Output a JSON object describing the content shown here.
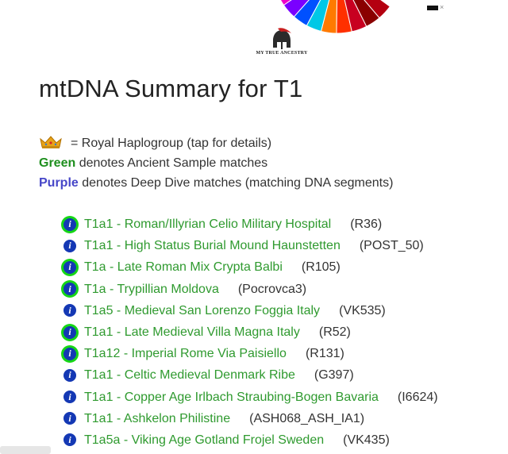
{
  "logo": {
    "text": "MY TRUE ANCESTRY"
  },
  "page_title": "mtDNA Summary for T1",
  "legend": {
    "royal_text": "= Royal Haplogroup (tap for details)",
    "green_word": "Green",
    "green_text": "denotes Ancient Sample matches",
    "purple_word": "Purple",
    "purple_text": "denotes Deep Dive matches (matching DNA segments)"
  },
  "colors": {
    "green_match": "#2f9a2f",
    "purple": "#4646c8",
    "info_icon": "#1438b4",
    "ancient_ring": "#16d616"
  },
  "matches": [
    {
      "name": "T1a1 - Roman/Illyrian Celio Military Hospital",
      "code": "(R36)",
      "ancient": true
    },
    {
      "name": "T1a1 - High Status Burial Mound Haunstetten",
      "code": "(POST_50)",
      "ancient": false
    },
    {
      "name": "T1a - Late Roman Mix Crypta Balbi",
      "code": "(R105)",
      "ancient": true
    },
    {
      "name": "T1a - Trypillian Moldova",
      "code": "(Pocrovca3)",
      "ancient": true
    },
    {
      "name": "T1a5 - Medieval San Lorenzo Foggia Italy",
      "code": "(VK535)",
      "ancient": false
    },
    {
      "name": "T1a1 - Late Medieval Villa Magna Italy",
      "code": "(R52)",
      "ancient": true
    },
    {
      "name": "T1a12 - Imperial Rome Via Paisiello",
      "code": "(R131)",
      "ancient": true
    },
    {
      "name": "T1a1 - Celtic Medieval Denmark Ribe",
      "code": "(G397)",
      "ancient": false
    },
    {
      "name": "T1a1 - Copper Age Irlbach Straubing-Bogen Bavaria",
      "code": "(I6624)",
      "ancient": false
    },
    {
      "name": "T1a1 - Ashkelon Philistine",
      "code": "(ASH068_ASH_IA1)",
      "ancient": false
    },
    {
      "name": "T1a5a - Viking Age Gotland Frojel Sweden",
      "code": "(VK435)",
      "ancient": false
    }
  ],
  "chart_top": {
    "colors": [
      "#a8a800",
      "#f000c8",
      "#7a00ff",
      "#0050ff",
      "#00c8e6",
      "#ff7a00",
      "#ff3000",
      "#c80020",
      "#8a0000",
      "#b40010"
    ]
  }
}
